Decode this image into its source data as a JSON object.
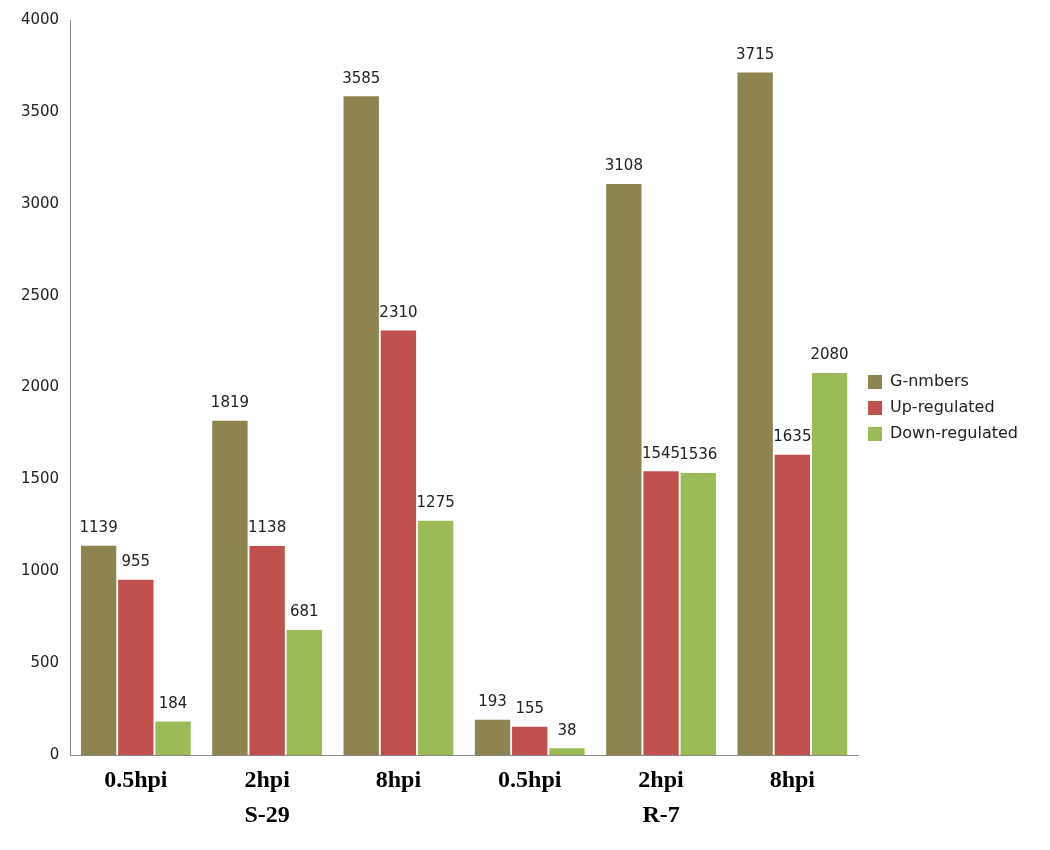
{
  "chart_data": {
    "type": "bar",
    "categories": [
      "0.5hpi",
      "2hpi",
      "8hpi",
      "0.5hpi",
      "2hpi",
      "8hpi"
    ],
    "series": [
      {
        "name": "G-nmbers",
        "color": "#8e8450",
        "values": [
          1139,
          1819,
          3585,
          193,
          3108,
          3715
        ]
      },
      {
        "name": "Up-regulated",
        "color": "#c0504d",
        "values": [
          955,
          1138,
          2310,
          155,
          1545,
          1635
        ]
      },
      {
        "name": "Down-regulated",
        "color": "#9bbb59",
        "values": [
          184,
          681,
          1275,
          38,
          1536,
          2080
        ]
      }
    ],
    "ylim": [
      0,
      4000
    ],
    "yticks": [
      0,
      500,
      1000,
      1500,
      2000,
      2500,
      3000,
      3500,
      4000
    ],
    "grid": false,
    "legend": "right",
    "data_labels": true,
    "annotations": [
      "S-29",
      "R-7"
    ]
  }
}
